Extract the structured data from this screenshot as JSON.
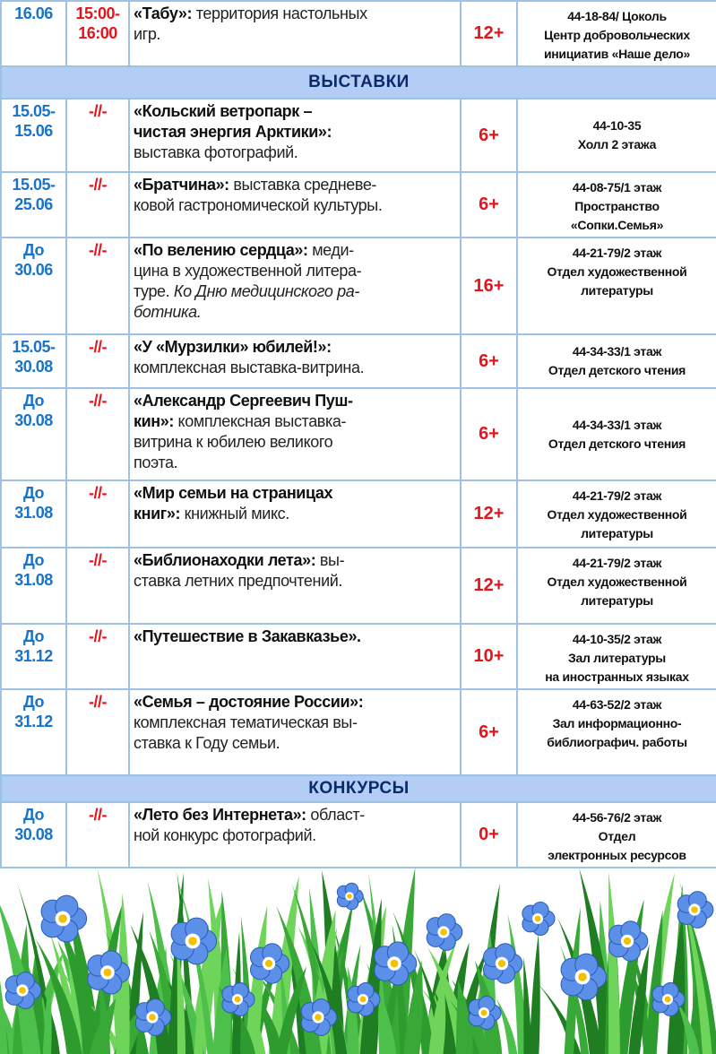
{
  "colors": {
    "date": "#1a73c8",
    "time": "#e5141b",
    "age": "#e5141b",
    "section_bg": "#b3cdf5",
    "section_text": "#0c2a6b",
    "border": "#9cc3e6"
  },
  "rows_top": [
    {
      "date": "16.06",
      "time": "15:00-\n16:00",
      "title": "«Табу»:",
      "text": " территория настольных\nигр.",
      "italic": "",
      "age": "12+",
      "place": "44-18-84/ Цоколь\nЦентр добровольческих\nинициатив «Наше дело»"
    }
  ],
  "sections": [
    {
      "title": "ВЫСТАВКИ"
    },
    {
      "title": "КОНКУРСЫ"
    }
  ],
  "exhibitions": [
    {
      "date": "15.05-\n15.06",
      "time": "-//-",
      "title": "«Кольский ветропарк –\nчистая энергия Арктики»:",
      "text": "\nвыставка фотографий.",
      "italic": "",
      "age": "6+",
      "place": "44-10-35\nХолл 2 этажа"
    },
    {
      "date": "15.05-\n25.06",
      "time": "-//-",
      "title": "«Братчина»:",
      "text": " выставка средневе-\nковой гастрономической культуры.",
      "italic": "",
      "age": "6+",
      "place": "44-08-75/1 этаж\nПространство\n«Сопки.Семья»"
    },
    {
      "date": "До\n30.06",
      "time": "-//-",
      "title": " «По велению сердца»:",
      "text": " меди-\nцина в художественной литера-\nтуре. ",
      "italic": "Ко Дню медицинского ра-\nботника.",
      "age": "16+",
      "place": "44-21-79/2 этаж\nОтдел художественной\nлитературы"
    },
    {
      "date": "15.05-\n30.08",
      "time": "-//-",
      "title": "«У «Мурзилки» юбилей!»:",
      "text": "\nкомплексная выставка-витрина.",
      "italic": "",
      "age": "6+",
      "place": "44-34-33/1 этаж\nОтдел детского чтения"
    },
    {
      "date": "До\n30.08",
      "time": "-//-",
      "title": "«Александр Сергеевич Пуш-\nкин»:",
      "text": " комплексная выставка-\nвитрина к юбилею великого\nпоэта.",
      "italic": "",
      "age": "6+",
      "place": "44-34-33/1 этаж\nОтдел детского чтения"
    },
    {
      "date": "До\n31.08",
      "time": "-//-",
      "title": "«Мир семьи на страницах\nкниг»:",
      "text": " книжный микс.",
      "italic": "",
      "age": "12+",
      "place": "44-21-79/2 этаж\nОтдел художественной\nлитературы"
    },
    {
      "date": "До\n31.08",
      "time": "-//-",
      "title": "«Библионаходки лета»:",
      "text": " вы-\nставка летних предпочтений.",
      "italic": "",
      "age": "12+",
      "place": "44-21-79/2 этаж\nОтдел художественной\nлитературы"
    },
    {
      "date": "До\n31.12",
      "time": "-//-",
      "title": "«Путешествие в Закавказье».",
      "text": "",
      "italic": "",
      "age": "10+",
      "place": "44-10-35/2 этаж\nЗал литературы\nна иностранных языках"
    },
    {
      "date": "До\n31.12",
      "time": "-//-",
      "title": "«Семья – достояние России»:",
      "text": "\nкомплексная тематическая вы-\nставка к Году семьи.",
      "italic": "",
      "age": "6+",
      "place": "44-63-52/2 этаж\nЗал информационно-\nбиблиографич. работы"
    }
  ],
  "contests": [
    {
      "date": "До\n30.08",
      "time": "-//-",
      "title": "«Лето без Интернета»:",
      "text": " област-\nной конкурс фотографий.",
      "italic": "",
      "age": "0+",
      "place": "44-56-76/2 этаж\nОтдел\nэлектронных ресурсов"
    }
  ]
}
